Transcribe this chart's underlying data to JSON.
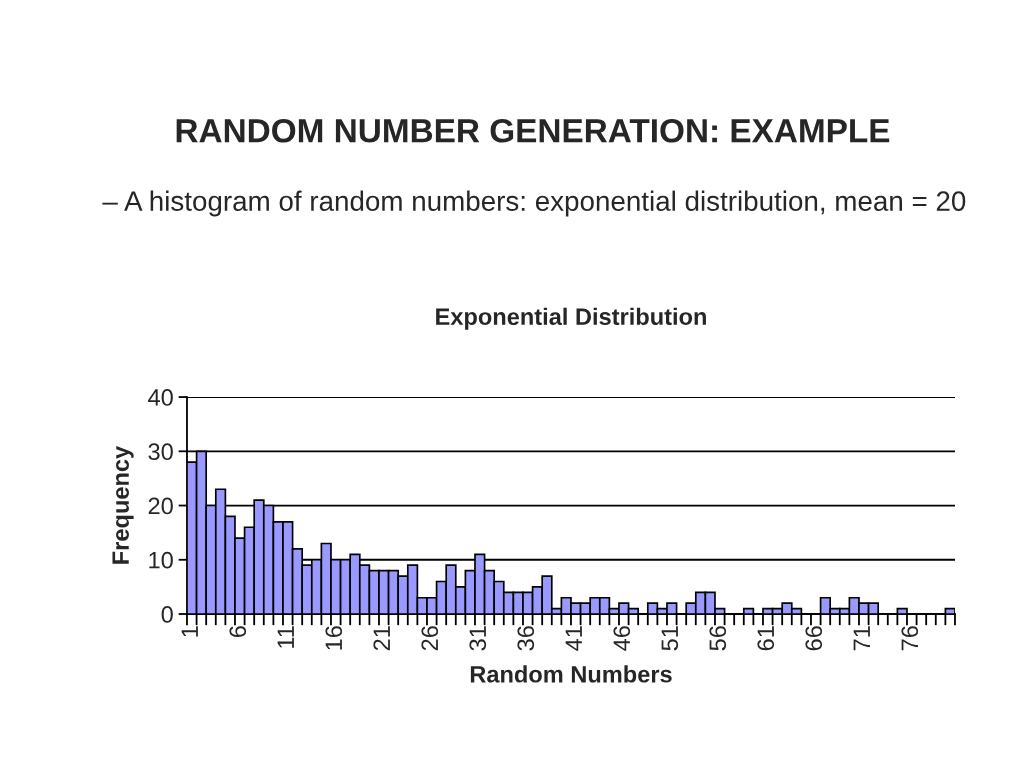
{
  "chart_data": {
    "type": "bar",
    "title": "Exponential Distribution",
    "xlabel": "Random Numbers",
    "ylabel": "Frequency",
    "annotations": [
      "RANDOM NUMBER GENERATION: EXAMPLE",
      "– A histogram of random numbers: exponential distribution, mean = 20"
    ],
    "categories": [
      "1",
      null,
      null,
      null,
      null,
      "6",
      null,
      null,
      null,
      null,
      "11",
      null,
      null,
      null,
      null,
      "16",
      null,
      null,
      null,
      null,
      "21",
      null,
      null,
      null,
      null,
      "26",
      null,
      null,
      null,
      null,
      "31",
      null,
      null,
      null,
      null,
      "36",
      null,
      null,
      null,
      null,
      "41",
      null,
      null,
      null,
      null,
      "46",
      null,
      null,
      null,
      null,
      "51",
      null,
      null,
      null,
      null,
      "56",
      null,
      null,
      null,
      null,
      "61",
      null,
      null,
      null,
      null,
      "66",
      null,
      null,
      null,
      null,
      "71",
      null,
      null,
      null,
      null,
      "76",
      null,
      null,
      null,
      null
    ],
    "values": [
      28,
      30,
      20,
      23,
      18,
      14,
      16,
      21,
      20,
      17,
      17,
      12,
      9,
      10,
      13,
      10,
      10,
      11,
      9,
      8,
      8,
      8,
      7,
      9,
      3,
      3,
      6,
      9,
      5,
      8,
      11,
      8,
      6,
      4,
      4,
      4,
      5,
      7,
      1,
      3,
      2,
      2,
      3,
      3,
      1,
      2,
      1,
      0,
      2,
      1,
      2,
      0,
      2,
      4,
      4,
      1,
      0,
      0,
      1,
      0,
      1,
      1,
      2,
      1,
      0,
      0,
      3,
      1,
      1,
      3,
      2,
      2,
      0,
      0,
      1,
      0,
      0,
      0,
      0,
      1
    ],
    "color": "#9999ff",
    "ylim": [
      0,
      40
    ],
    "yticks": [
      0,
      10,
      20,
      30,
      40
    ],
    "grid": "y"
  }
}
